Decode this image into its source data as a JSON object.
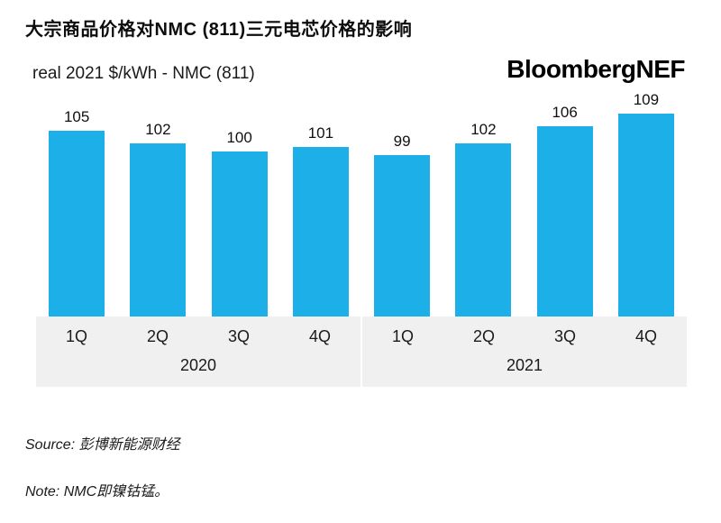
{
  "header": {
    "title": "大宗商品价格对NMC (811)三元电芯价格的影响",
    "subtitle": "real 2021 $/kWh - NMC (811)",
    "brand": "BloombergNEF"
  },
  "chart_data": {
    "type": "bar",
    "title": "大宗商品价格对NMC (811)三元电芯价格的影响",
    "ylabel": "real 2021 $/kWh - NMC (811)",
    "categories": [
      "1Q",
      "2Q",
      "3Q",
      "4Q",
      "1Q",
      "2Q",
      "3Q",
      "4Q"
    ],
    "group_labels": [
      "2020",
      "2021"
    ],
    "values": [
      105,
      102,
      100,
      101,
      99,
      102,
      106,
      109
    ],
    "bar_color": "#1db0e8",
    "axis_band_color": "#f0f0f0",
    "ylim": [
      60,
      115
    ],
    "data_labels": true,
    "grid": false,
    "legend": "none"
  },
  "footer": {
    "source": "Source: 彭博新能源财经",
    "note": "Note: NMC即镍钴锰。"
  }
}
